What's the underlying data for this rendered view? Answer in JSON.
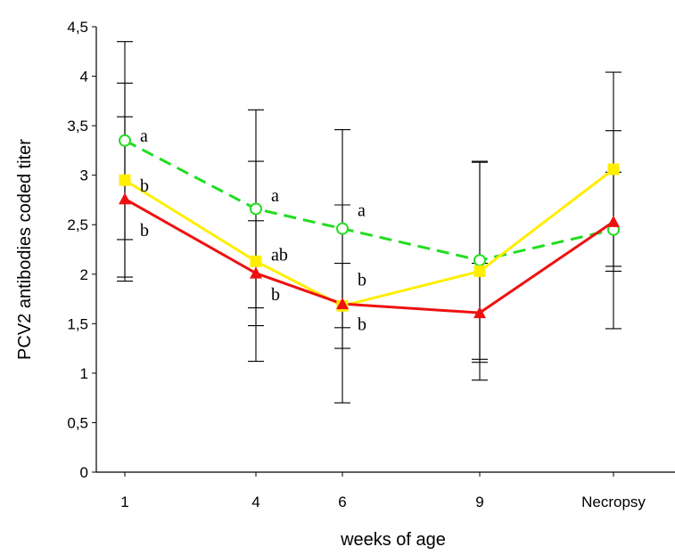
{
  "chart_data": {
    "type": "line",
    "title": "",
    "xlabel": "weeks of age",
    "ylabel": "PCV2 antibodies coded titer",
    "categories": [
      "1",
      "4",
      "6",
      "9",
      "Necropsy"
    ],
    "ylim": [
      0,
      4.5
    ],
    "yticks": [
      "0",
      "0,5",
      "1",
      "1,5",
      "2",
      "2,5",
      "3",
      "3,5",
      "4",
      "4,5"
    ],
    "grid": false,
    "legend": "none",
    "series": [
      {
        "color": "#22dd22",
        "style": "dashed",
        "marker": "open-circle",
        "values": [
          3.35,
          2.66,
          2.46,
          2.14,
          2.45
        ],
        "error": [
          1.0,
          1.0,
          1.0,
          1.0,
          1.0
        ]
      },
      {
        "color": "#ffee00",
        "style": "solid",
        "marker": "square",
        "values": [
          2.95,
          2.13,
          1.68,
          2.03,
          3.06
        ],
        "error": [
          0.98,
          1.01,
          0.43,
          1.1,
          0.98
        ]
      },
      {
        "color": "#ee1111",
        "style": "solid",
        "marker": "triangle",
        "values": [
          2.76,
          2.01,
          1.7,
          1.61,
          2.53
        ],
        "error": [
          0.83,
          0.53,
          1.0,
          0.5,
          0.5
        ]
      }
    ],
    "annotations": [
      {
        "text": "a",
        "category": "1",
        "y": 3.4
      },
      {
        "text": "b",
        "category": "1",
        "y": 2.9
      },
      {
        "text": "b",
        "category": "1",
        "y": 2.45
      },
      {
        "text": "a",
        "category": "4",
        "y": 2.8
      },
      {
        "text": "ab",
        "category": "4",
        "y": 2.2
      },
      {
        "text": "b",
        "category": "4",
        "y": 1.8
      },
      {
        "text": "a",
        "category": "6",
        "y": 2.65
      },
      {
        "text": "b",
        "category": "6",
        "y": 1.95
      },
      {
        "text": "b",
        "category": "6",
        "y": 1.5
      }
    ]
  }
}
